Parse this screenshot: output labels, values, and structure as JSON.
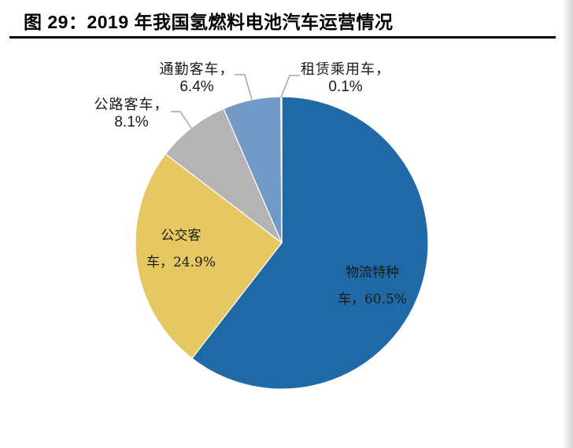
{
  "figure": {
    "title": "图 29：2019 年我国氢燃料电池汽车运营情况"
  },
  "colors": {
    "logistics": "#1F69A6",
    "bus": "#E6C862",
    "highway_coach": "#B4B4B4",
    "commuter": "#7399C6",
    "rental": "#7399C6",
    "leader_line": "#A6A6A6",
    "slice_border": "#FFFFFF"
  },
  "labels": {
    "logistics": {
      "line1": "物流特种",
      "line2": "车，60.5%"
    },
    "bus": {
      "line1": "公交客",
      "line2": "车，24.9%"
    },
    "highway_coach": {
      "name": "公路客车，",
      "pct": "8.1%"
    },
    "commuter": {
      "name": "通勤客车，",
      "pct": "6.4%"
    },
    "rental": {
      "name": "租赁乘用车，",
      "pct": "0.1%"
    }
  },
  "chart_data": {
    "type": "pie",
    "title": "图 29：2019 年我国氢燃料电池汽车运营情况",
    "start_angle": "12 o'clock",
    "direction": "clockwise",
    "categories": [
      "物流特种车",
      "公交客车",
      "公路客车",
      "通勤客车",
      "租赁乘用车"
    ],
    "values": [
      60.5,
      24.9,
      8.1,
      6.4,
      0.1
    ],
    "unit": "%",
    "colors": [
      "#1F69A6",
      "#E6C862",
      "#B4B4B4",
      "#7399C6",
      "#7399C6"
    ],
    "data_labels": [
      "物流特种车，60.5%",
      "公交客车，24.9%",
      "公路客车，8.1%",
      "通勤客车，6.4%",
      "租赁乘用车，0.1%"
    ],
    "legend": "none (category names shown as data labels)"
  }
}
